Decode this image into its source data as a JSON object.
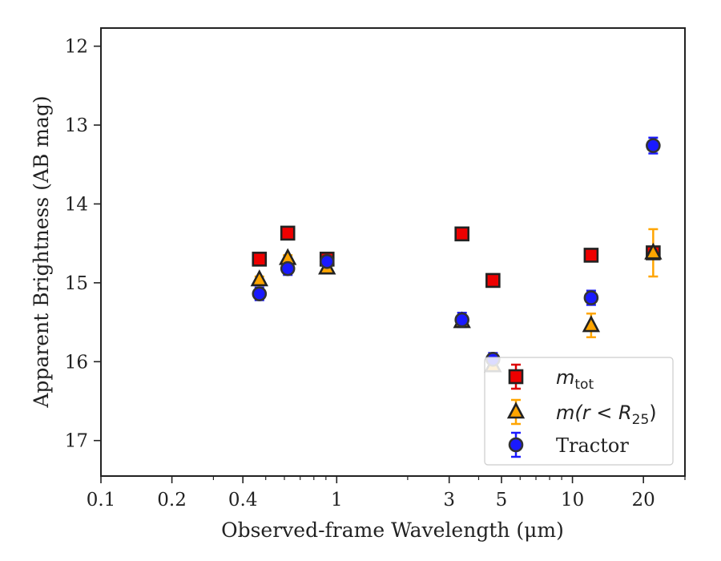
{
  "chart_data": {
    "type": "scatter",
    "xlabel": "Observed-frame Wavelength (μm)",
    "ylabel": "Apparent Brightness (AB mag)",
    "xscale": "log",
    "xlim": [
      0.1,
      30
    ],
    "ylim": [
      17.45,
      11.77
    ],
    "y_inverted": true,
    "xticks": [
      {
        "value": 0.1,
        "label": "0.1"
      },
      {
        "value": 0.2,
        "label": "0.2"
      },
      {
        "value": 0.4,
        "label": "0.4"
      },
      {
        "value": 1,
        "label": "1"
      },
      {
        "value": 3,
        "label": "3"
      },
      {
        "value": 5,
        "label": "5"
      },
      {
        "value": 10,
        "label": "10"
      },
      {
        "value": 20,
        "label": "20"
      }
    ],
    "yticks": [
      {
        "value": 12,
        "label": "12"
      },
      {
        "value": 13,
        "label": "13"
      },
      {
        "value": 14,
        "label": "14"
      },
      {
        "value": 15,
        "label": "15"
      },
      {
        "value": 16,
        "label": "16"
      },
      {
        "value": 17,
        "label": "17"
      }
    ],
    "grid": false,
    "legend_position": "lower-right",
    "series": [
      {
        "name": "m_tot",
        "legend_main": "m",
        "legend_sub": "tot",
        "marker": "square",
        "fill": "#ee0000",
        "edge": "#222222",
        "errcolor": "#dd0000",
        "points": [
          {
            "x": 0.47,
            "y": 14.7,
            "err": 0.06
          },
          {
            "x": 0.62,
            "y": 14.37,
            "err": 0.07
          },
          {
            "x": 0.91,
            "y": 14.7,
            "err": 0.05
          },
          {
            "x": 3.4,
            "y": 14.38,
            "err": 0.06
          },
          {
            "x": 4.6,
            "y": 14.97,
            "err": 0.07
          },
          {
            "x": 12.0,
            "y": 14.65,
            "err": 0.07
          },
          {
            "x": 22.0,
            "y": 14.62,
            "err": 0.07
          }
        ]
      },
      {
        "name": "m(r < R25)",
        "legend_main": "m(r < R",
        "legend_sub": "25",
        "legend_tail": ")",
        "marker": "triangle",
        "fill": "#ffa500",
        "edge": "#222222",
        "errcolor": "#ffa500",
        "points": [
          {
            "x": 0.47,
            "y": 14.96,
            "err": 0.04
          },
          {
            "x": 0.62,
            "y": 14.69,
            "err": 0.04
          },
          {
            "x": 0.91,
            "y": 14.81,
            "err": 0.03
          },
          {
            "x": 3.4,
            "y": 15.49,
            "err": 0.05
          },
          {
            "x": 4.6,
            "y": 16.05,
            "err": 0.05
          },
          {
            "x": 12.0,
            "y": 15.54,
            "err": 0.15
          },
          {
            "x": 22.0,
            "y": 14.62,
            "err": 0.3
          }
        ]
      },
      {
        "name": "Tractor",
        "marker": "circle",
        "fill": "#1a1aff",
        "edge": "#333333",
        "errcolor": "#1a1aff",
        "points": [
          {
            "x": 0.47,
            "y": 15.14,
            "err": 0.08
          },
          {
            "x": 0.62,
            "y": 14.82,
            "err": 0.08
          },
          {
            "x": 0.91,
            "y": 14.73,
            "err": 0.04
          },
          {
            "x": 3.4,
            "y": 15.47,
            "err": 0.09
          },
          {
            "x": 4.6,
            "y": 15.97,
            "err": 0.08
          },
          {
            "x": 12.0,
            "y": 15.19,
            "err": 0.09
          },
          {
            "x": 22.0,
            "y": 13.26,
            "err": 0.1
          }
        ]
      }
    ]
  }
}
